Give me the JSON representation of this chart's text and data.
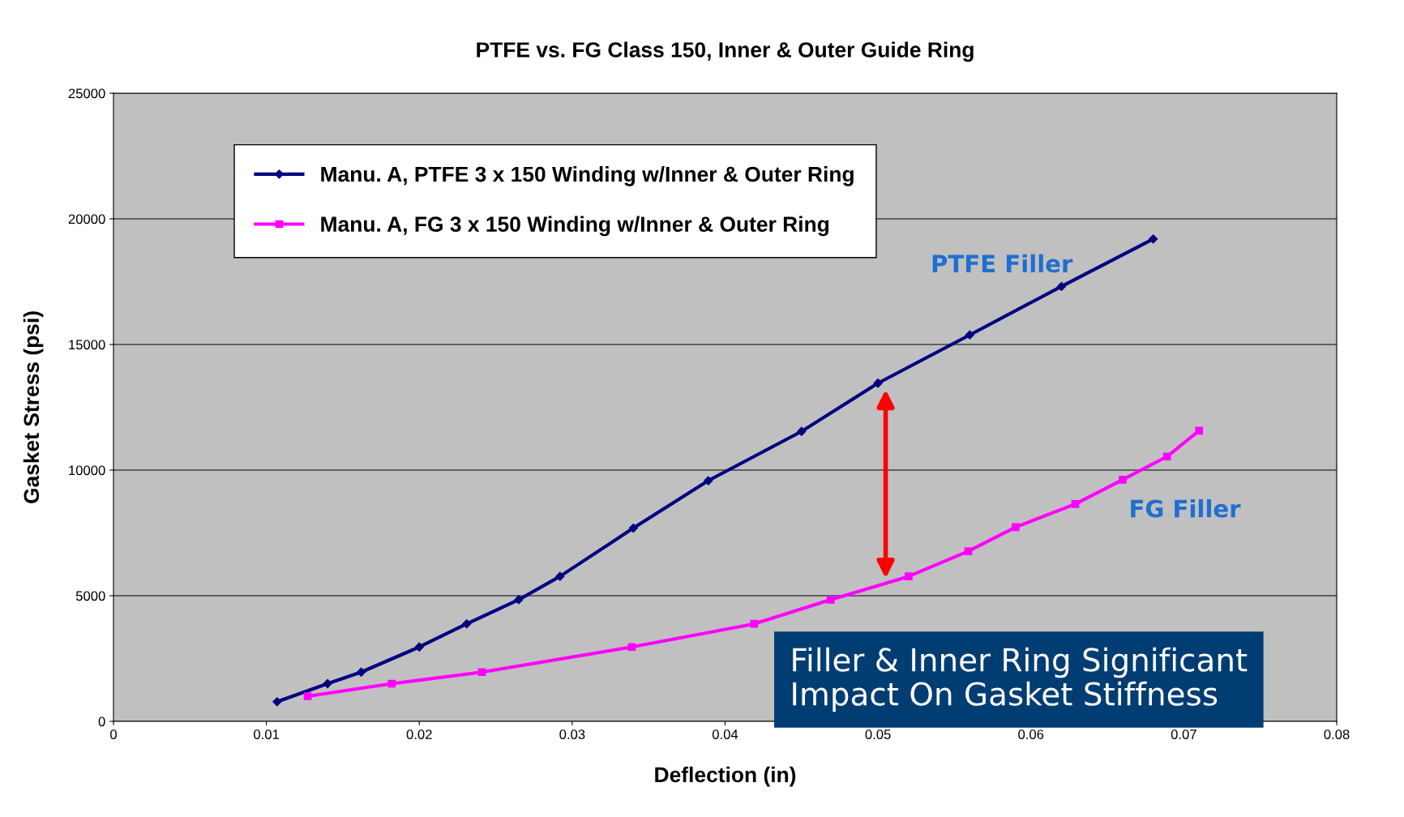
{
  "chart_data": {
    "type": "line",
    "title": "PTFE vs. FG Class 150, Inner & Outer Guide Ring",
    "xlabel": "Deflection (in)",
    "ylabel": "Gasket Stress (psi)",
    "series": [
      {
        "name": "Manu. A, PTFE 3 x 150 Winding w/Inner & Outer Ring",
        "color": "#000080",
        "marker": "diamond",
        "x": [
          0.0107,
          0.014,
          0.0162,
          0.02,
          0.0231,
          0.0265,
          0.0292,
          0.034,
          0.0389,
          0.045,
          0.05,
          0.056,
          0.062,
          0.068
        ],
        "values": [
          780,
          1500,
          1960,
          2960,
          3880,
          4840,
          5770,
          7690,
          9580,
          11540,
          13460,
          15380,
          17310,
          19200
        ]
      },
      {
        "name": "Manu. A, FG 3 x 150 Winding w/Inner & Outer Ring",
        "color": "#ff00ff",
        "marker": "square",
        "x": [
          0.0127,
          0.0182,
          0.0241,
          0.0339,
          0.0419,
          0.0469,
          0.052,
          0.0559,
          0.059,
          0.0629,
          0.066,
          0.0689,
          0.071
        ],
        "values": [
          1000,
          1500,
          1960,
          2960,
          3880,
          4840,
          5770,
          6770,
          7730,
          8650,
          9620,
          10540,
          11570
        ]
      }
    ],
    "xlim": [
      0,
      0.08
    ],
    "xticks": [
      {
        "value": 0,
        "label": "0"
      },
      0.01,
      0.02,
      0.03,
      0.04,
      0.05,
      0.06,
      0.07,
      0.08
    ],
    "ylim": [
      0,
      25000
    ],
    "yticks": [
      0,
      5000,
      10000,
      15000,
      20000,
      25000
    ],
    "grid": "y",
    "legend": "top left",
    "line_style": "solid",
    "annotations": [
      "PTFE Filler",
      "FG Filler",
      "Filler & Inner Ring Significant\nImpact On Gasket Stiffness"
    ]
  }
}
